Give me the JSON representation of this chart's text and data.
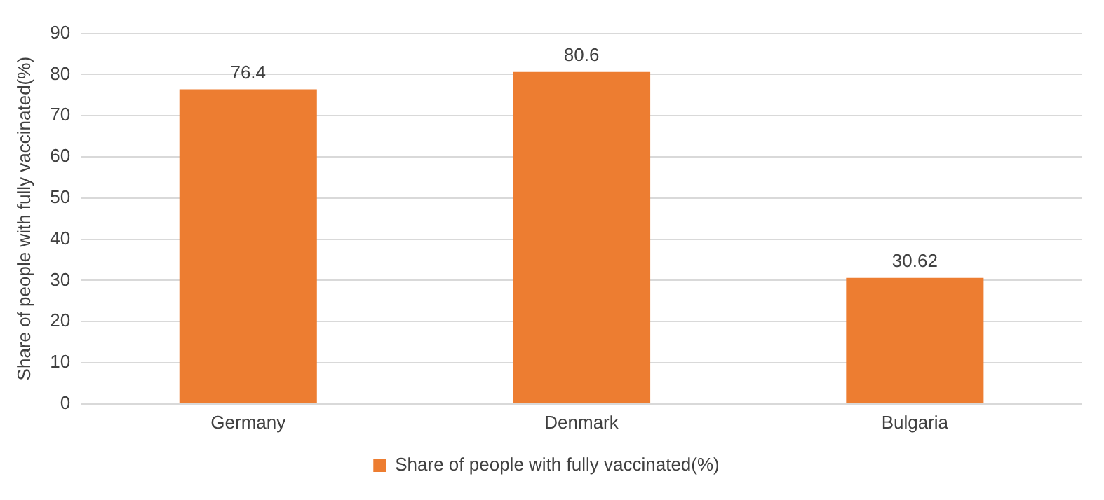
{
  "chart_data": {
    "type": "bar",
    "ylabel": "Share of people with fully vaccinated(%)",
    "categories": [
      "Germany",
      "Denmark",
      "Bulgaria"
    ],
    "series": [
      {
        "name": "Share of people with fully vaccinated(%)",
        "color": "#ed7d31",
        "values": [
          76.4,
          80.6,
          30.62
        ]
      }
    ],
    "ylim": [
      0,
      90
    ],
    "yticks": [
      0,
      10,
      20,
      30,
      40,
      50,
      60,
      70,
      80,
      90
    ],
    "grid": "y",
    "legend": "bottom",
    "data_labels": true
  }
}
